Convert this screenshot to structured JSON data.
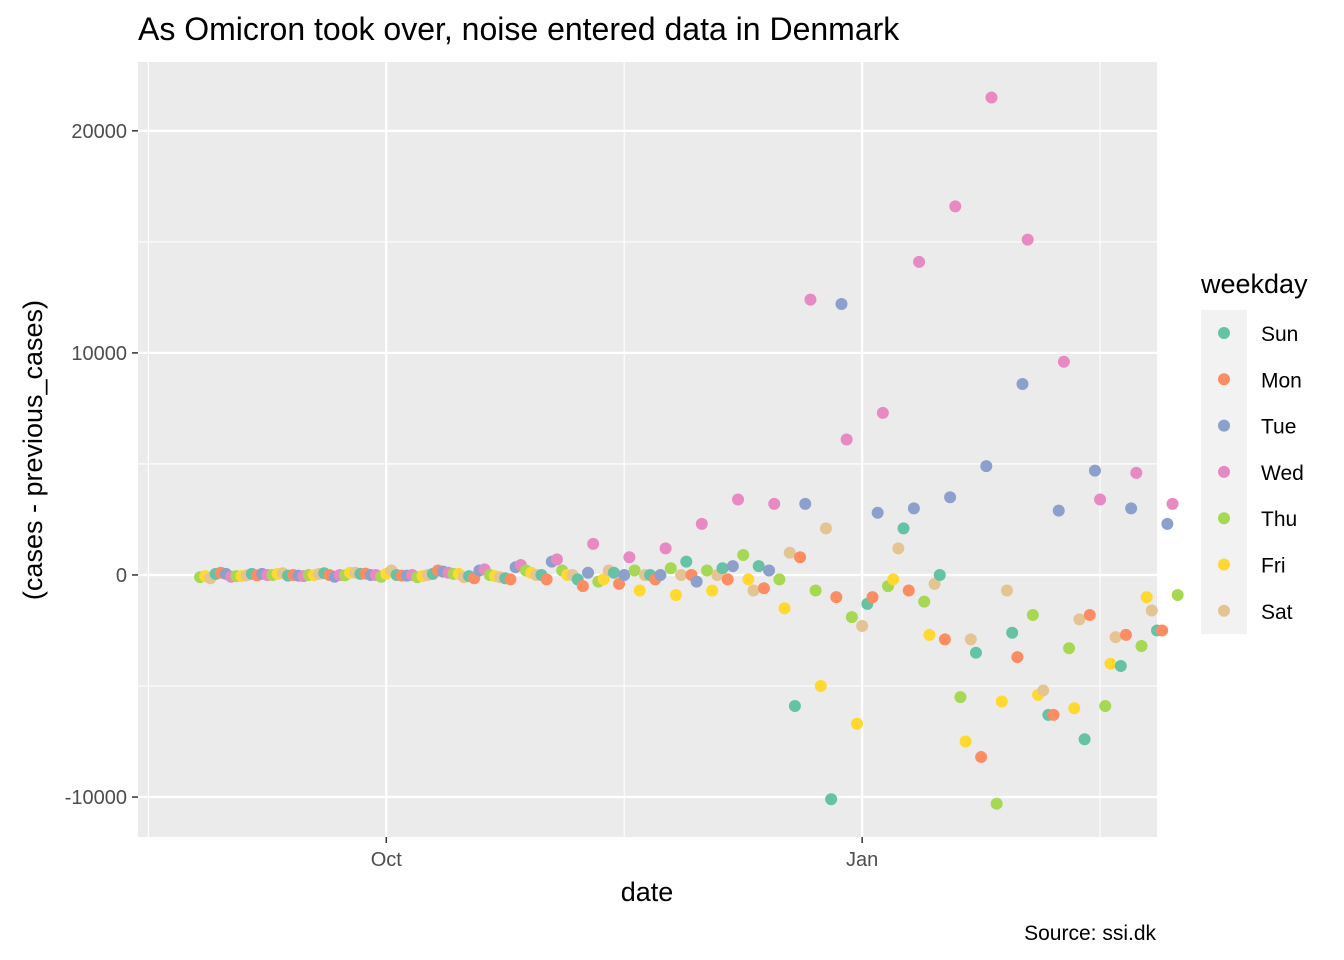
{
  "chart_data": {
    "type": "scatter",
    "title": "As Omicron took over, noise entered data in Denmark",
    "xlabel": "date",
    "ylabel": "(cases - previous_cases)",
    "caption": "Source: ssi.dk",
    "xlim": [
      "2021-08-14",
      "2022-02-27"
    ],
    "ylim": [
      -11800,
      23100
    ],
    "x_ticks": [
      {
        "date": "2021-10-01",
        "label": "Oct"
      },
      {
        "date": "2022-01-01",
        "label": "Jan"
      }
    ],
    "y_ticks": [
      {
        "value": 20000,
        "label": "20000"
      },
      {
        "value": 10000,
        "label": "10000"
      },
      {
        "value": 0,
        "label": "0"
      },
      {
        "value": -10000,
        "label": "-10000"
      }
    ],
    "grid": true,
    "legend": {
      "title": "weekday",
      "position": "right",
      "categories": [
        "Sun",
        "Mon",
        "Tue",
        "Wed",
        "Thu",
        "Fri",
        "Sat"
      ]
    },
    "colors": {
      "Sun": "#66C2A5",
      "Mon": "#FC8D62",
      "Tue": "#8DA0CB",
      "Wed": "#E78AC3",
      "Thu": "#A6D854",
      "Fri": "#FFD92F",
      "Sat": "#E5C494"
    },
    "start_date": "2021-08-26",
    "start_weekday": "Thu",
    "values": [
      -100,
      -50,
      -150,
      50,
      100,
      50,
      -80,
      -50,
      -50,
      -20,
      50,
      -20,
      50,
      0,
      0,
      50,
      80,
      -30,
      0,
      -30,
      -50,
      0,
      0,
      50,
      80,
      0,
      -80,
      0,
      -20,
      100,
      100,
      50,
      60,
      0,
      0,
      -80,
      50,
      200,
      0,
      -30,
      -30,
      0,
      -100,
      -50,
      0,
      50,
      200,
      150,
      100,
      50,
      50,
      -100,
      -50,
      -150,
      200,
      250,
      0,
      -50,
      -100,
      -150,
      -200,
      350,
      450,
      200,
      100,
      0,
      0,
      -200,
      600,
      700,
      200,
      0,
      0,
      -200,
      -500,
      100,
      1400,
      -300,
      -200,
      200,
      100,
      -400,
      0,
      800,
      200,
      -700,
      0,
      0,
      -200,
      0,
      1200,
      300,
      -900,
      0,
      600,
      0,
      -300,
      2300,
      200,
      -700,
      0,
      300,
      -200,
      400,
      3400,
      900,
      -200,
      -700,
      400,
      -600,
      200,
      3200,
      -200,
      -1500,
      1000,
      -5900,
      800,
      3200,
      12400,
      -700,
      -5000,
      2100,
      -10100,
      -1000,
      12200,
      6100,
      -1900,
      -6700,
      -2300,
      -1300,
      -1000,
      2800,
      7300,
      -500,
      -200,
      1200,
      2100,
      -700,
      3000,
      14100,
      -1200,
      -2700,
      -400,
      0,
      -2900,
      3500,
      16600,
      -5500,
      -7500,
      -2900,
      -3500,
      -8200,
      4900,
      21500,
      -10300,
      -5700,
      -700,
      -2600,
      -3700,
      8600,
      15100,
      -1800,
      -5400,
      -5200,
      -6300,
      -6300,
      2900,
      9600,
      -3300,
      -6000,
      -2000,
      -7400,
      -1800,
      4700,
      3400,
      -5900,
      -4000,
      -2800,
      -4100,
      -2700,
      3000,
      4600,
      -3200,
      -1000,
      -1600,
      -2500,
      -2500,
      2300,
      3200,
      -900
    ]
  }
}
